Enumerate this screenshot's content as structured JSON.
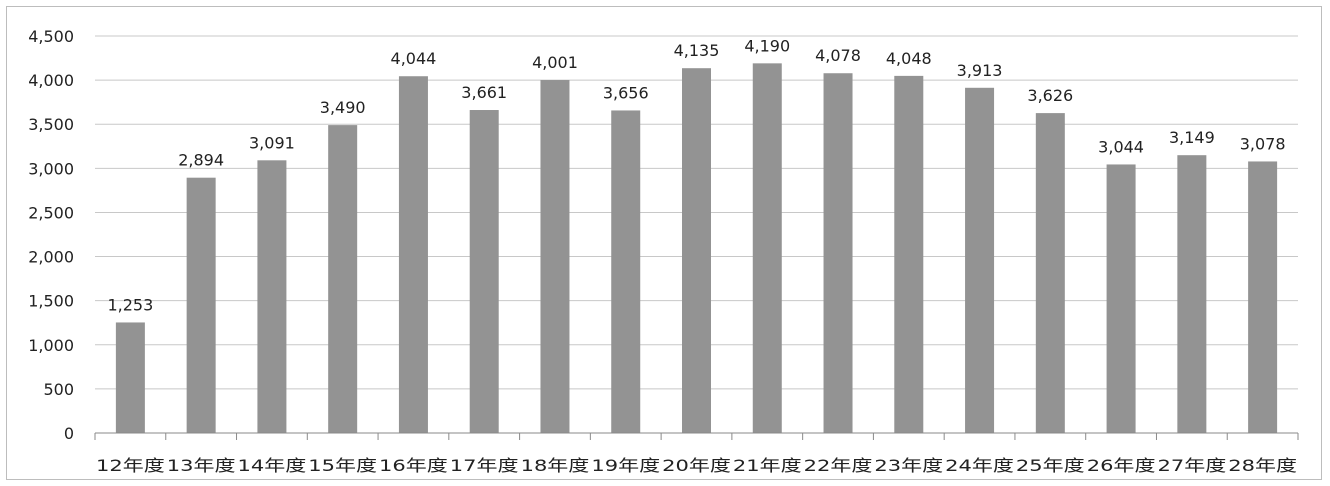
{
  "chart_data": {
    "type": "bar",
    "title": "",
    "xlabel": "",
    "ylabel": "",
    "ylim": [
      0,
      4500
    ],
    "yticks": [
      "0",
      "500",
      "1,000",
      "1,500",
      "2,000",
      "2,500",
      "3,000",
      "3,500",
      "4,000",
      "4,500"
    ],
    "grid": true,
    "legend": "none",
    "bar_color": "#939393",
    "categories": [
      "12年度",
      "13年度",
      "14年度",
      "15年度",
      "16年度",
      "17年度",
      "18年度",
      "19年度",
      "20年度",
      "21年度",
      "22年度",
      "23年度",
      "24年度",
      "25年度",
      "26年度",
      "27年度",
      "28年度"
    ],
    "values": [
      1253,
      2894,
      3091,
      3490,
      4044,
      3661,
      4001,
      3656,
      4135,
      4190,
      4078,
      4048,
      3913,
      3626,
      3044,
      3149,
      3078
    ],
    "value_labels": [
      "1,253",
      "2,894",
      "3,091",
      "3,490",
      "4,044",
      "3,661",
      "4,001",
      "3,656",
      "4,135",
      "4,190",
      "4,078",
      "4,048",
      "3,913",
      "3,626",
      "3,044",
      "3,149",
      "3,078"
    ]
  }
}
